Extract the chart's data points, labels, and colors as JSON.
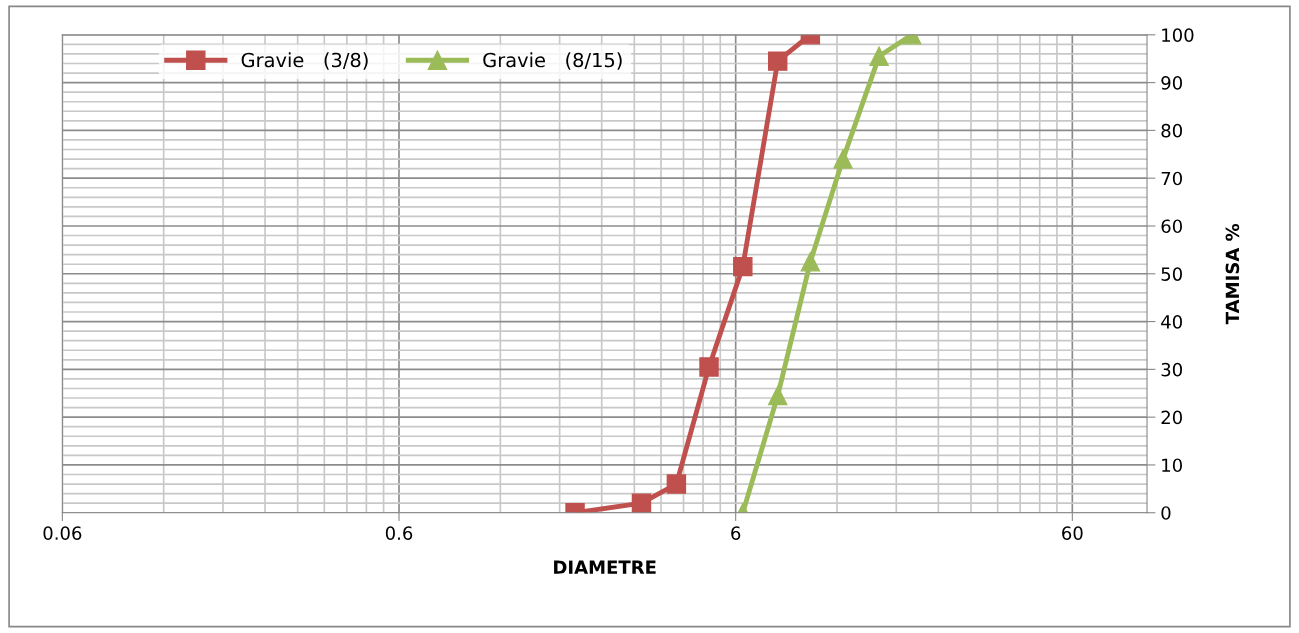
{
  "chart_data": {
    "type": "line",
    "xlabel": "DIAMETRE",
    "ylabel": "TAMISA %",
    "log": "x",
    "xlim": [
      0.06,
      100
    ],
    "xticks": [
      0.06,
      0.6,
      6,
      60
    ],
    "ylim": [
      0,
      100
    ],
    "yticks": [
      0,
      10,
      20,
      30,
      40,
      50,
      60,
      70,
      80,
      90,
      100
    ],
    "grid": true,
    "legend": "top left",
    "series": [
      {
        "name": "Gravie   (3/8)",
        "color": "#c0504d",
        "marker": "square",
        "x": [
          2,
          3.15,
          4,
          5,
          6.3,
          8,
          10
        ],
        "values": [
          0,
          2,
          6,
          30.5,
          51.5,
          94.5,
          100
        ]
      },
      {
        "name": "Gravie   (8/15)",
        "color": "#9bbb59",
        "marker": "triangle",
        "x": [
          6.3,
          8,
          10,
          12.5,
          16,
          20
        ],
        "values": [
          0,
          24.5,
          52.5,
          74,
          95.5,
          100
        ]
      }
    ]
  }
}
